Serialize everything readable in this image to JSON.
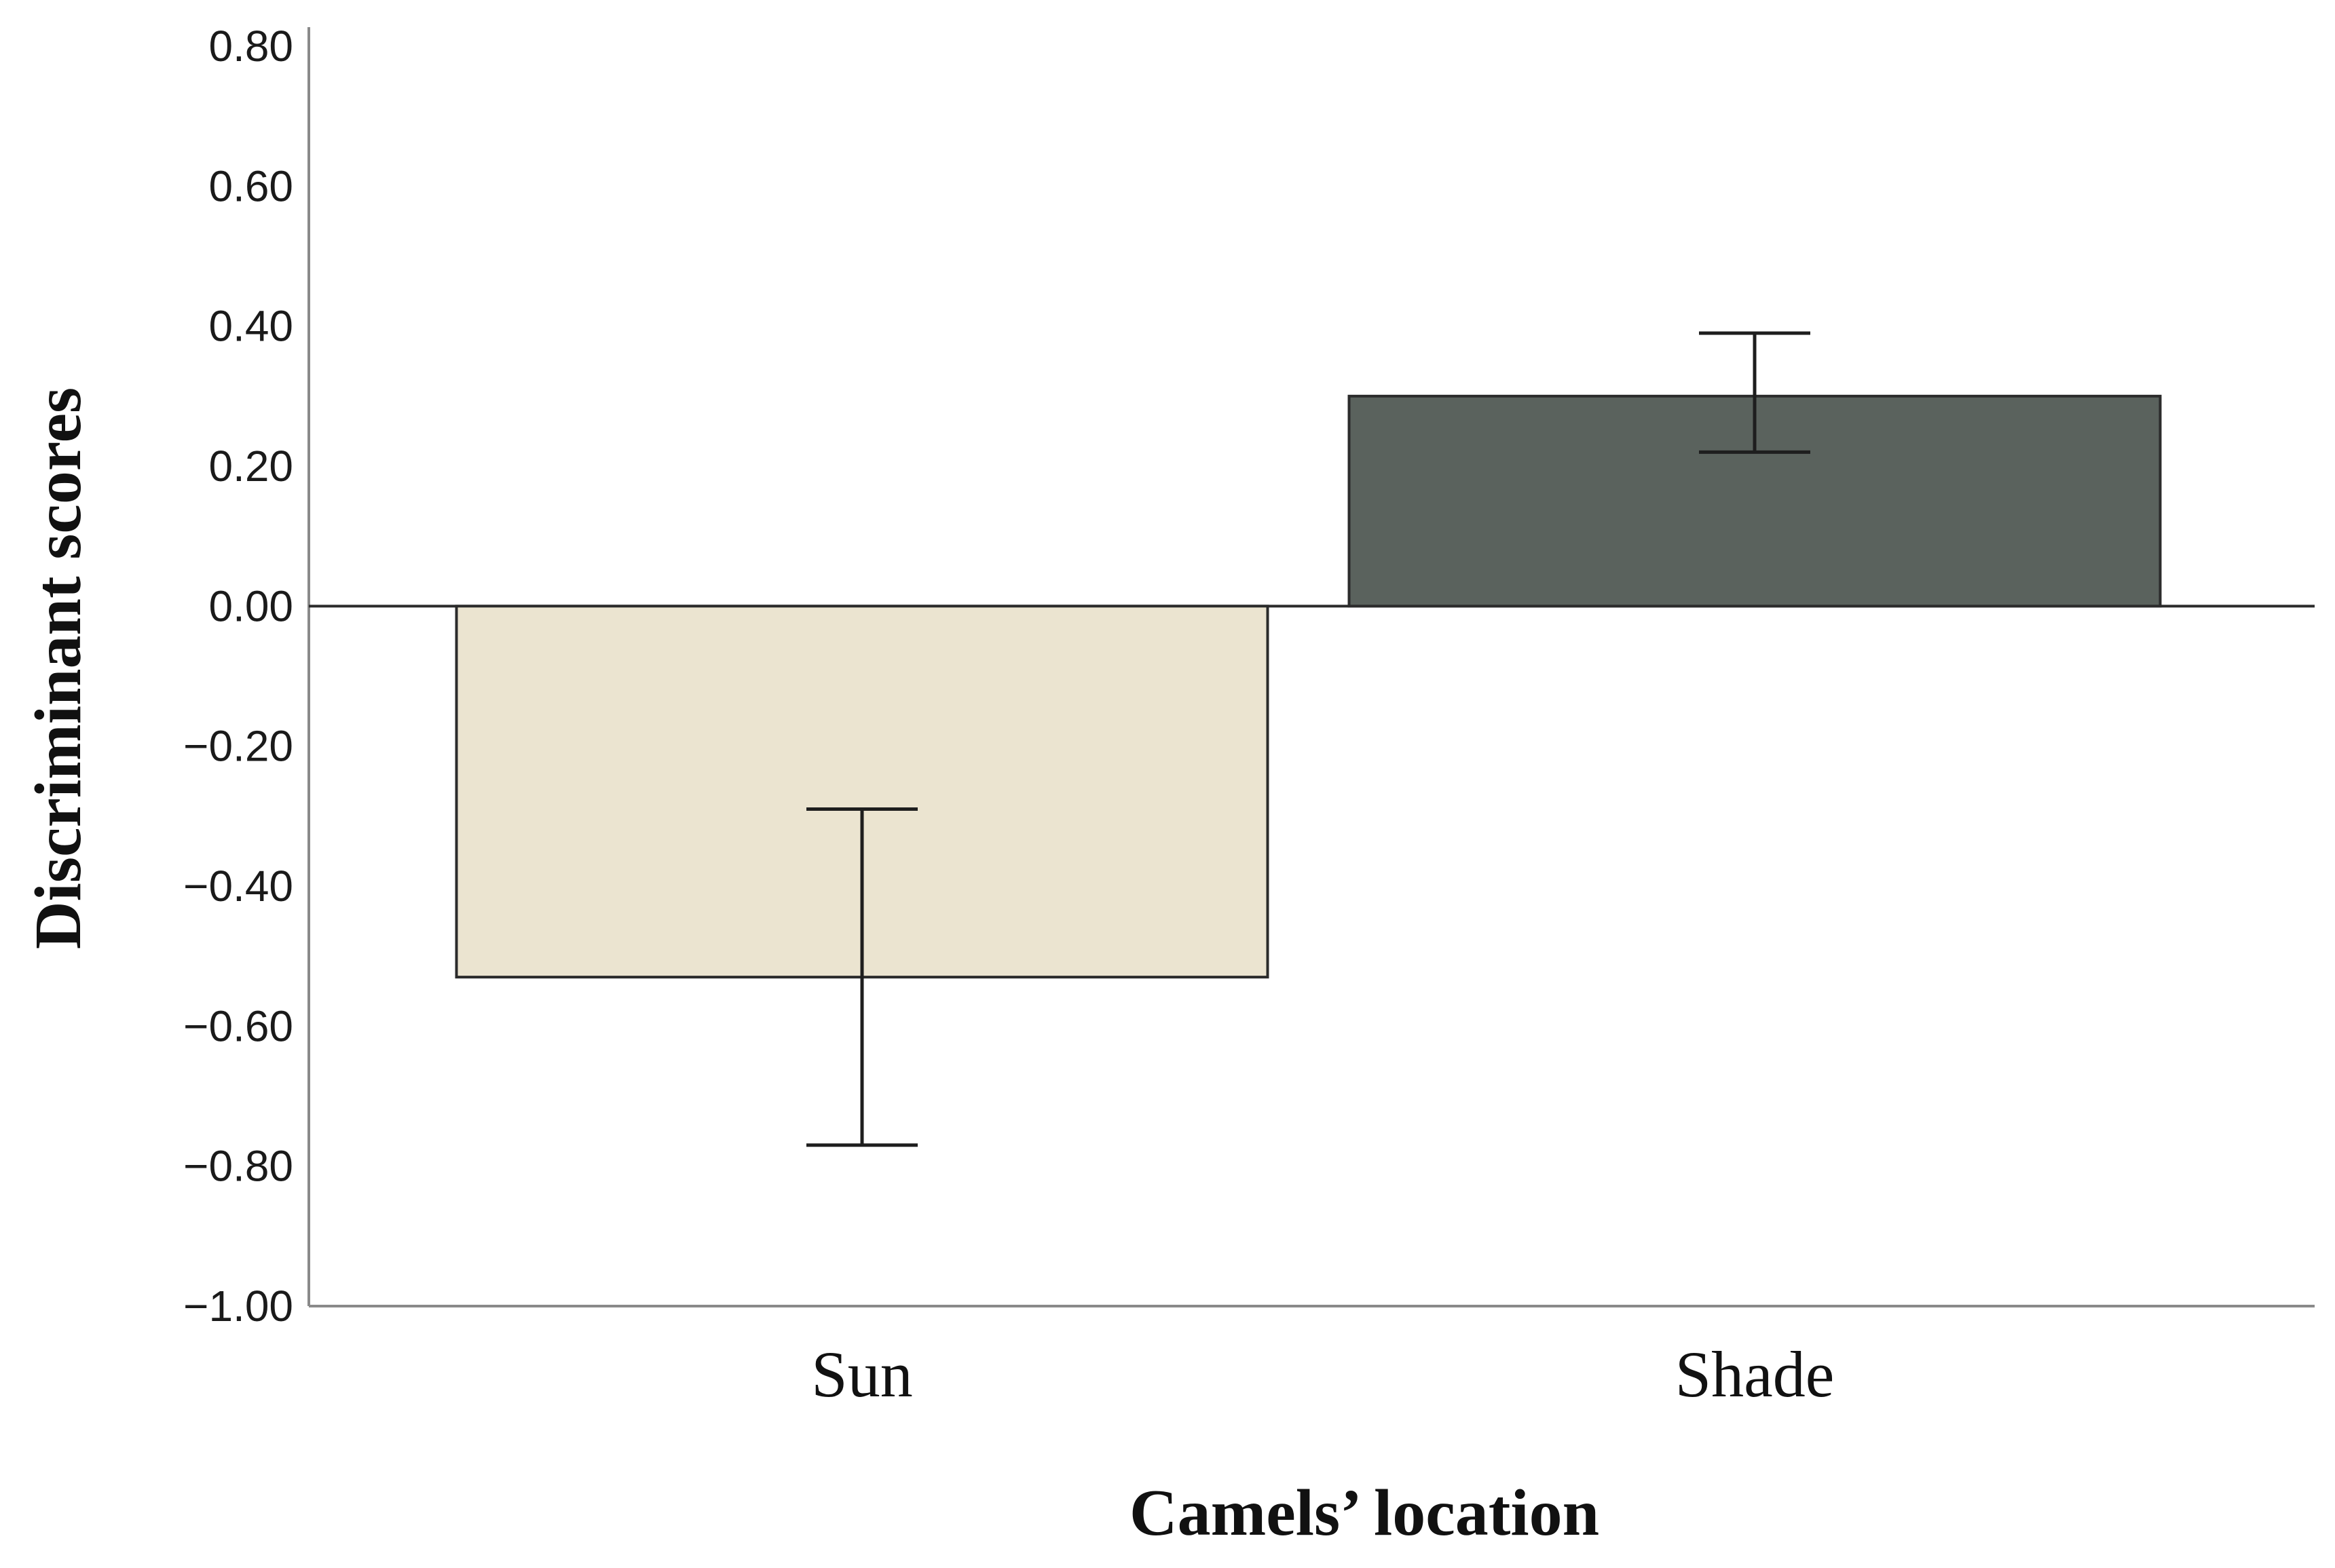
{
  "chart_data": {
    "type": "bar",
    "title": "",
    "xlabel": "Camels’ location",
    "ylabel": "Discriminant scores",
    "categories": [
      "Sun",
      "Shade"
    ],
    "values": [
      -0.53,
      0.3
    ],
    "error_bars": [
      {
        "low": -0.77,
        "high": -0.29
      },
      {
        "low": 0.22,
        "high": 0.39
      }
    ],
    "ylim": [
      -1.0,
      0.8
    ],
    "yticks": [
      {
        "value": 0.8,
        "label": "0.80"
      },
      {
        "value": 0.6,
        "label": "0.60"
      },
      {
        "value": 0.4,
        "label": "0.40"
      },
      {
        "value": 0.2,
        "label": "0.20"
      },
      {
        "value": 0.0,
        "label": "0.00"
      },
      {
        "value": -0.2,
        "label": "−0.20"
      },
      {
        "value": -0.4,
        "label": "−0.40"
      },
      {
        "value": -0.6,
        "label": "−0.60"
      },
      {
        "value": -0.8,
        "label": "−0.80"
      },
      {
        "value": -1.0,
        "label": "−1.00"
      }
    ],
    "colors": [
      "#ebe4d0",
      "#5a625d"
    ],
    "grid": false,
    "legend": "none"
  }
}
